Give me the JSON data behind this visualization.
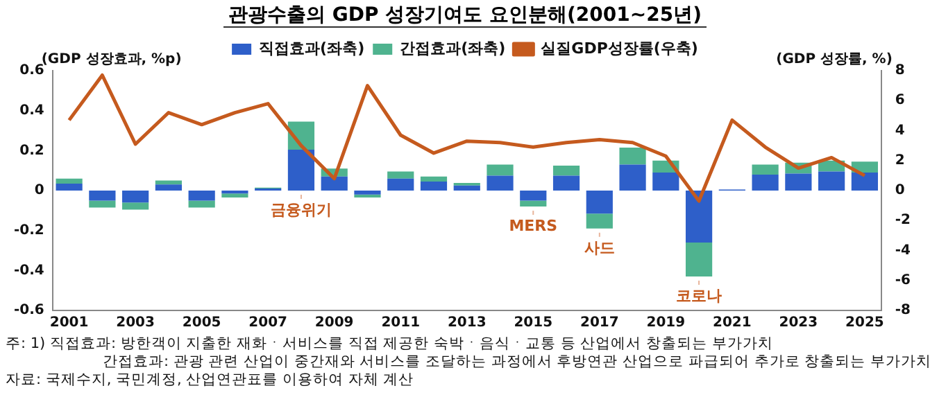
{
  "chart_data": {
    "type": "bar",
    "title": "관광수출의 GDP 성장기여도 요인분해(2001~25년)",
    "ylabel": "(GDP 성장효과, %p)",
    "y2label": "(GDP 성장률, %)",
    "x": [
      2001,
      2002,
      2003,
      2004,
      2005,
      2006,
      2007,
      2008,
      2009,
      2010,
      2011,
      2012,
      2013,
      2014,
      2015,
      2016,
      2017,
      2018,
      2019,
      2020,
      2021,
      2022,
      2023,
      2024,
      2025
    ],
    "xlim": [
      2000.5,
      2025.5
    ],
    "xticks": [
      2001,
      2003,
      2005,
      2007,
      2009,
      2011,
      2013,
      2015,
      2017,
      2019,
      2021,
      2023,
      2025
    ],
    "ylim": [
      -0.6,
      0.6
    ],
    "yticks": [
      {
        "value": -0.6,
        "label": "-0.6"
      },
      {
        "value": -0.4,
        "label": "-0.4"
      },
      {
        "value": -0.2,
        "label": "-0.2"
      },
      0,
      {
        "value": 0.2,
        "label": "0.2"
      },
      {
        "value": 0.4,
        "label": "0.4"
      },
      {
        "value": 0.6,
        "label": "0.6"
      }
    ],
    "y2lim": [
      -8,
      8
    ],
    "y2ticks": [
      -8,
      -6,
      -4,
      -2,
      0,
      2,
      4,
      6,
      8
    ],
    "stacked": true,
    "grid": false,
    "legend": "top",
    "series": [
      {
        "name": "직접효과(좌축)",
        "axis": "y",
        "color": "#2e5fc9",
        "values": [
          0.035,
          -0.05,
          -0.06,
          0.03,
          -0.05,
          -0.015,
          0.01,
          0.205,
          0.07,
          -0.02,
          0.06,
          0.045,
          0.025,
          0.075,
          -0.05,
          0.075,
          -0.115,
          0.13,
          0.09,
          -0.26,
          0.005,
          0.08,
          0.085,
          0.095,
          0.09
        ]
      },
      {
        "name": "간접효과(좌축)",
        "axis": "y",
        "color": "#4fb38f",
        "values": [
          0.025,
          -0.035,
          -0.035,
          0.02,
          -0.035,
          -0.02,
          0.005,
          0.14,
          0.04,
          -0.015,
          0.035,
          0.025,
          0.013,
          0.055,
          -0.03,
          0.05,
          -0.075,
          0.085,
          0.06,
          -0.17,
          0,
          0.05,
          0.055,
          0.055,
          0.055
        ]
      },
      {
        "name": "실질GDP성장률(우축)",
        "type": "line",
        "axis": "y2",
        "color": "#c55a1e",
        "marker": "none",
        "line_style": "solid",
        "values": [
          4.7,
          7.7,
          3.1,
          5.2,
          4.4,
          5.2,
          5.8,
          3.0,
          0.8,
          7.0,
          3.7,
          2.5,
          3.3,
          3.2,
          2.9,
          3.2,
          3.4,
          3.2,
          2.3,
          -0.7,
          4.7,
          2.9,
          1.5,
          2.2,
          1.0
        ]
      }
    ],
    "annotations": [
      {
        "text": "금융위기",
        "x": 2008,
        "y": 0
      },
      {
        "text": "MERS",
        "x": 2015,
        "y": -0.08
      },
      {
        "text": "사드",
        "x": 2017,
        "y": -0.19
      },
      {
        "text": "코로나",
        "x": 2020,
        "y": -0.43
      },
      "주: 1) 직접효과: 방한객이 지출한 재화ㆍ서비스를 직접 제공한 숙박ㆍ음식ㆍ교통 등 산업에서 창출되는 부가가치",
      "간접효과: 관광 관련 산업이 중간재와 서비스를 조달하는 과정에서 후방연관 산업으로 파급되어 추가로 창출되는 부가가치",
      "자료: 국제수지, 국민계정, 산업연관표를 이용하여 자체 계산"
    ]
  }
}
